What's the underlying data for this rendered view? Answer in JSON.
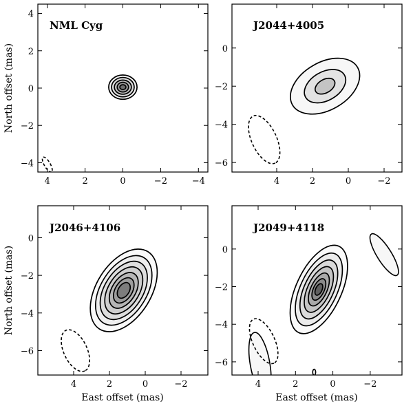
{
  "chart_data": [
    {
      "type": "contour",
      "title": "NML Cyg",
      "xlabel": "",
      "ylabel": "North offset (mas)",
      "xlim": [
        4.5,
        -4.5
      ],
      "ylim": [
        -4.5,
        4.5
      ],
      "xticks": [
        4,
        2,
        0,
        -2,
        -4
      ],
      "xtick_labels": [
        "4",
        "2",
        "0",
        "−2",
        "−4"
      ],
      "yticks": [
        4,
        2,
        0,
        -2,
        -4
      ],
      "ytick_labels": [
        "4",
        "2",
        "0",
        "−2",
        "−4"
      ],
      "source_center": [
        0.0,
        0.05
      ],
      "contours": [
        {
          "a": 0.75,
          "b": 0.65,
          "angle": 0,
          "fill": "#f4f4f4"
        },
        {
          "a": 0.6,
          "b": 0.52,
          "angle": 0,
          "fill": "#dcdcdc"
        },
        {
          "a": 0.45,
          "b": 0.38,
          "angle": 0,
          "fill": "#bdbdbd"
        },
        {
          "a": 0.3,
          "b": 0.26,
          "angle": 0,
          "fill": "#979797"
        },
        {
          "a": 0.16,
          "b": 0.13,
          "angle": 0,
          "fill": "#707070"
        }
      ],
      "beam": {
        "x": 4.0,
        "y": -4.1,
        "a": 0.45,
        "b": 0.16,
        "angle": 60
      },
      "extra_contours": []
    },
    {
      "type": "contour",
      "title": "J2044+4005",
      "xlabel": "",
      "ylabel": "",
      "xlim": [
        6.5,
        -3.0
      ],
      "ylim": [
        -6.5,
        2.3
      ],
      "xticks": [
        4,
        2,
        0,
        -2
      ],
      "xtick_labels": [
        "4",
        "2",
        "0",
        "−2"
      ],
      "yticks": [
        0,
        -2,
        -4,
        -6
      ],
      "ytick_labels": [
        "0",
        "−2",
        "−4",
        "−6"
      ],
      "source_center": [
        1.3,
        -2.0
      ],
      "contours": [
        {
          "a": 2.1,
          "b": 1.25,
          "angle": -30,
          "fill": "#f7f7f7"
        },
        {
          "a": 1.25,
          "b": 0.75,
          "angle": -30,
          "fill": "#e3e3e3"
        },
        {
          "a": 0.6,
          "b": 0.35,
          "angle": -30,
          "fill": "#c4c4c4"
        }
      ],
      "beam": {
        "x": 4.7,
        "y": -4.8,
        "a": 1.45,
        "b": 0.65,
        "angle": 65
      },
      "extra_contours": []
    },
    {
      "type": "contour",
      "title": "J2046+4106",
      "xlabel": "East offset (mas)",
      "ylabel": "North offset (mas)",
      "xlim": [
        6.0,
        -3.5
      ],
      "ylim": [
        -7.3,
        1.7
      ],
      "xticks": [
        4,
        2,
        0,
        -2
      ],
      "xtick_labels": [
        "4",
        "2",
        "0",
        "−2"
      ],
      "yticks": [
        0,
        -2,
        -4,
        -6
      ],
      "ytick_labels": [
        "0",
        "−2",
        "−4",
        "−6"
      ],
      "source_center": [
        1.2,
        -2.8
      ],
      "contours": [
        {
          "a": 2.55,
          "b": 1.45,
          "angle": -58,
          "fill": "#fafafa"
        },
        {
          "a": 2.15,
          "b": 1.22,
          "angle": -58,
          "fill": "#eeeeee"
        },
        {
          "a": 1.8,
          "b": 1.02,
          "angle": -58,
          "fill": "#dedede"
        },
        {
          "a": 1.45,
          "b": 0.82,
          "angle": -58,
          "fill": "#cecece"
        },
        {
          "a": 1.1,
          "b": 0.63,
          "angle": -58,
          "fill": "#b6b6b6"
        },
        {
          "a": 0.78,
          "b": 0.45,
          "angle": -58,
          "fill": "#9d9d9d"
        },
        {
          "a": 0.48,
          "b": 0.29,
          "angle": -58,
          "fill": "#7d7d7d"
        }
      ],
      "beam": {
        "x": 3.9,
        "y": -6.0,
        "a": 1.25,
        "b": 0.62,
        "angle": 65
      },
      "extra_contours": []
    },
    {
      "type": "contour",
      "title": "J2049+4118",
      "xlabel": "East offset (mas)",
      "ylabel": "",
      "xlim": [
        5.4,
        -3.7
      ],
      "ylim": [
        -6.7,
        2.3
      ],
      "xticks": [
        4,
        2,
        0,
        -2
      ],
      "xtick_labels": [
        "4",
        "2",
        "0",
        "−2"
      ],
      "yticks": [
        0,
        -2,
        -4,
        -6
      ],
      "ytick_labels": [
        "0",
        "−2",
        "−4",
        "−6"
      ],
      "source_center": [
        0.75,
        -2.15
      ],
      "contours": [
        {
          "a": 2.55,
          "b": 1.2,
          "angle": -65,
          "fill": "#fafafa"
        },
        {
          "a": 2.1,
          "b": 0.98,
          "angle": -65,
          "fill": "#ececec"
        },
        {
          "a": 1.7,
          "b": 0.78,
          "angle": -65,
          "fill": "#dadada"
        },
        {
          "a": 1.32,
          "b": 0.6,
          "angle": -65,
          "fill": "#c4c4c4"
        },
        {
          "a": 0.95,
          "b": 0.43,
          "angle": -65,
          "fill": "#a9a9a9"
        },
        {
          "a": 0.62,
          "b": 0.29,
          "angle": -65,
          "fill": "#8a8a8a"
        },
        {
          "a": 0.33,
          "b": 0.17,
          "angle": -65,
          "fill": "#5f5f5f"
        }
      ],
      "beam": {
        "x": 3.7,
        "y": -4.9,
        "a": 1.3,
        "b": 0.58,
        "angle": 65
      },
      "extra_contours": [
        {
          "x": -2.75,
          "y": -0.3,
          "a": 1.3,
          "b": 0.38,
          "angle": 58
        },
        {
          "x": 3.9,
          "y": -6.1,
          "a": 1.7,
          "b": 0.52,
          "angle": 80
        },
        {
          "x": 1.0,
          "y": -6.55,
          "a": 0.16,
          "b": 0.08,
          "angle": 90
        }
      ]
    }
  ]
}
